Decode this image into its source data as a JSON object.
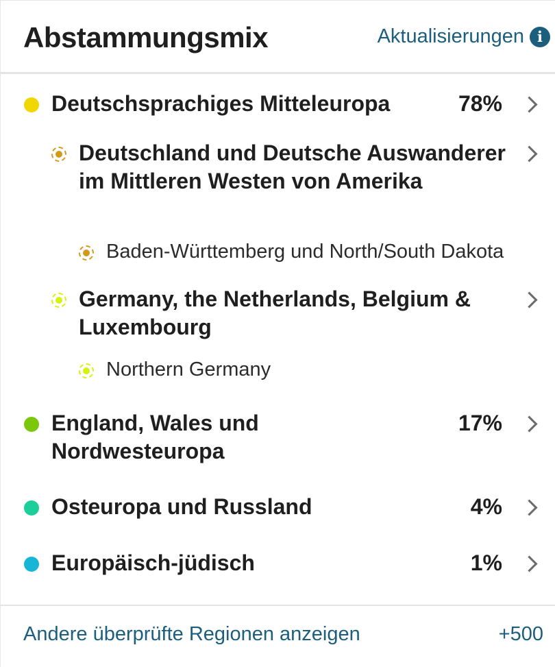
{
  "header": {
    "title": "Abstammungsmix",
    "updates_label": "Aktualisierungen",
    "info_glyph": "i"
  },
  "regions": [
    {
      "label": "Deutschsprachiges Mitteleuropa",
      "percent": "78%",
      "color": "#f2d600",
      "children": [
        {
          "label": "Deutschland und Deutsche Auswanderer im Mittleren Westen von Amerika",
          "color": "#d39a1a",
          "sub": "Baden-Württemberg und North/South Dakota"
        },
        {
          "label": "Germany, the Netherlands, Belgium & Luxembourg",
          "color": "#d6f20f",
          "sub": "Northern Germany"
        }
      ]
    },
    {
      "label": "England, Wales und Nordwesteuropa",
      "percent": "17%",
      "color": "#7ac70c"
    },
    {
      "label": "Osteuropa und Russland",
      "percent": "4%",
      "color": "#1ccf9a"
    },
    {
      "label": "Europäisch-jüdisch",
      "percent": "1%",
      "color": "#18b6d6"
    }
  ],
  "footer": {
    "link_label": "Andere überprüfte Regionen anzeigen",
    "count": "+500"
  }
}
